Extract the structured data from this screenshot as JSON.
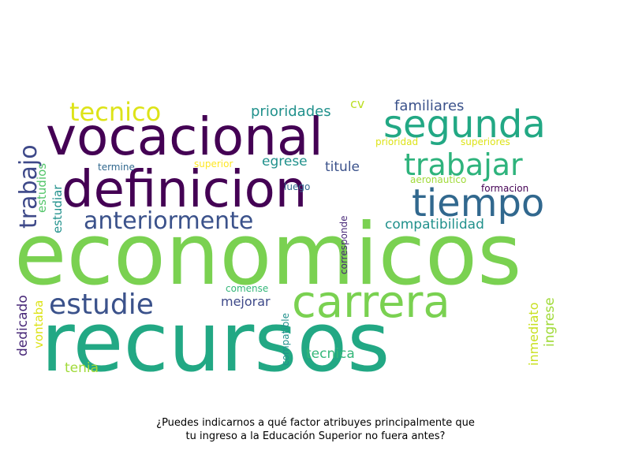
{
  "caption": {
    "line1": "¿Puedes indicarnos a qué factor atribuyes principalmente que",
    "line2": "tu ingreso a la Educación Superior no fuera antes?"
  },
  "words": [
    {
      "text": "economicos",
      "color": "#7ad151"
    },
    {
      "text": "recursos",
      "color": "#22a884"
    },
    {
      "text": "definicion",
      "color": "#440154"
    },
    {
      "text": "vocacional",
      "color": "#440154"
    },
    {
      "text": "carrera",
      "color": "#7ad151"
    },
    {
      "text": "segunda",
      "color": "#22a884"
    },
    {
      "text": "tiempo",
      "color": "#31688e"
    },
    {
      "text": "trabajar",
      "color": "#2eb37c"
    },
    {
      "text": "estudie",
      "color": "#3b528b"
    },
    {
      "text": "tecnico",
      "color": "#dde318"
    },
    {
      "text": "anteriormente",
      "color": "#3b528b"
    },
    {
      "text": "trabajo",
      "color": "#3e4989"
    },
    {
      "text": "prioridades",
      "color": "#21918c"
    },
    {
      "text": "familiares",
      "color": "#3b528b"
    },
    {
      "text": "cv",
      "color": "#bddf26"
    },
    {
      "text": "compatibilidad",
      "color": "#21918c"
    },
    {
      "text": "egrese",
      "color": "#21918c"
    },
    {
      "text": "titule",
      "color": "#3b528b"
    },
    {
      "text": "estudios",
      "color": "#52c569"
    },
    {
      "text": "estudiar",
      "color": "#21918c"
    },
    {
      "text": "termine",
      "color": "#31688e"
    },
    {
      "text": "superior",
      "color": "#fde725"
    },
    {
      "text": "luego",
      "color": "#31688e"
    },
    {
      "text": "prioridad",
      "color": "#dde318"
    },
    {
      "text": "superiores",
      "color": "#dde318"
    },
    {
      "text": "aeronautico",
      "color": "#a0da39"
    },
    {
      "text": "formacion",
      "color": "#440154"
    },
    {
      "text": "corresponde",
      "color": "#482878"
    },
    {
      "text": "mejorar",
      "color": "#3e4989"
    },
    {
      "text": "comense",
      "color": "#35b779"
    },
    {
      "text": "compatible",
      "color": "#21918c"
    },
    {
      "text": "tecnica",
      "color": "#35b779"
    },
    {
      "text": "dedicado",
      "color": "#482878"
    },
    {
      "text": "vontaba",
      "color": "#dde318"
    },
    {
      "text": "tenia",
      "color": "#a0da39"
    },
    {
      "text": "inmediato",
      "color": "#c8e020"
    },
    {
      "text": "ingrese",
      "color": "#a0da39"
    }
  ]
}
